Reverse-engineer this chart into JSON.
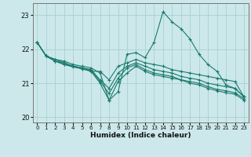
{
  "xlabel": "Humidex (Indice chaleur)",
  "ylabel": "",
  "bg_color": "#cce8ea",
  "grid_color": "#aacfd2",
  "line_color": "#1a7a6e",
  "xlim": [
    -0.5,
    23.5
  ],
  "ylim": [
    19.85,
    23.35
  ],
  "xticks": [
    0,
    1,
    2,
    3,
    4,
    5,
    6,
    7,
    8,
    9,
    10,
    11,
    12,
    13,
    14,
    15,
    16,
    17,
    18,
    19,
    20,
    21,
    22,
    23
  ],
  "yticks": [
    20,
    21,
    22,
    23
  ],
  "series": [
    [
      22.2,
      21.8,
      21.7,
      21.65,
      21.55,
      21.5,
      21.45,
      21.3,
      20.5,
      20.75,
      21.85,
      21.9,
      21.75,
      22.2,
      23.1,
      22.8,
      22.6,
      22.3,
      21.85,
      21.55,
      21.35,
      20.95,
      20.85,
      20.6
    ],
    [
      22.2,
      21.8,
      21.7,
      21.6,
      21.5,
      21.45,
      21.4,
      21.1,
      20.85,
      21.3,
      21.5,
      21.6,
      21.5,
      21.4,
      21.35,
      21.3,
      21.2,
      21.15,
      21.1,
      21.0,
      20.95,
      20.9,
      20.85,
      20.6
    ],
    [
      22.2,
      21.8,
      21.65,
      21.55,
      21.5,
      21.45,
      21.38,
      21.05,
      20.7,
      21.15,
      21.45,
      21.55,
      21.4,
      21.3,
      21.25,
      21.2,
      21.1,
      21.05,
      21.0,
      20.9,
      20.82,
      20.78,
      20.72,
      20.55
    ],
    [
      22.2,
      21.8,
      21.65,
      21.55,
      21.48,
      21.42,
      21.35,
      21.0,
      20.5,
      21.05,
      21.3,
      21.5,
      21.35,
      21.25,
      21.2,
      21.15,
      21.1,
      21.0,
      20.95,
      20.85,
      20.78,
      20.72,
      20.68,
      20.5
    ],
    [
      22.2,
      21.8,
      21.65,
      21.6,
      21.5,
      21.45,
      21.35,
      21.35,
      21.1,
      21.5,
      21.6,
      21.7,
      21.6,
      21.55,
      21.5,
      21.4,
      21.35,
      21.3,
      21.25,
      21.2,
      21.15,
      21.1,
      21.05,
      20.6
    ]
  ]
}
